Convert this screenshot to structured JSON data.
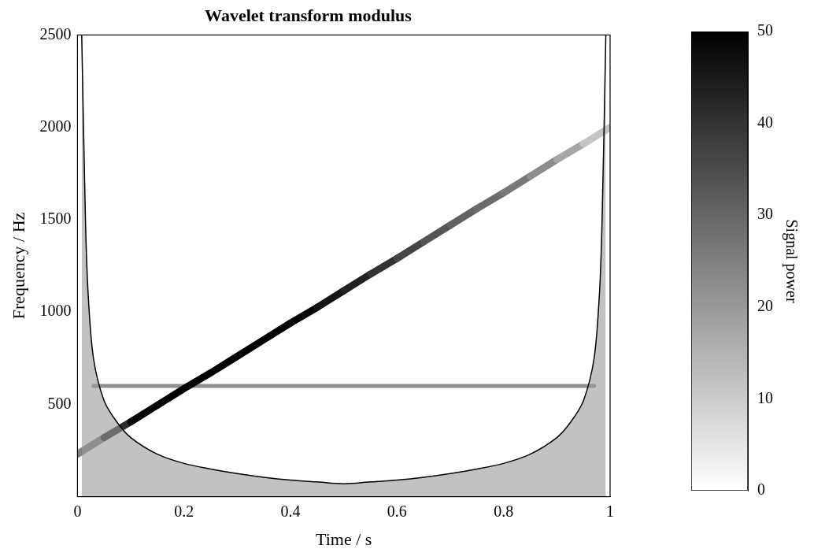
{
  "chart_data": {
    "type": "heatmap",
    "title": "Wavelet transform modulus",
    "x_label": "Time / s",
    "y_label": "Frequency / Hz",
    "xlim": [
      0,
      1
    ],
    "xticks": [
      0,
      0.2,
      0.4,
      0.6,
      0.8,
      1
    ],
    "ylim": [
      0,
      2500
    ],
    "yticks": [
      500,
      1000,
      1500,
      2000,
      2500
    ],
    "grid": false,
    "ridges": [
      {
        "x": [
          0,
          0.05,
          0.1,
          0.15,
          0.2,
          0.25,
          0.3,
          0.35,
          0.4,
          0.45,
          0.5,
          0.55,
          0.6,
          0.65,
          0.7,
          0.75,
          0.8,
          0.85,
          0.9,
          0.95,
          1
        ],
        "y": [
          230,
          320,
          405,
          495,
          585,
          670,
          760,
          850,
          940,
          1025,
          1115,
          1205,
          1290,
          1380,
          1470,
          1560,
          1645,
          1735,
          1825,
          1910,
          2000
        ],
        "power": [
          15,
          35,
          48,
          50,
          50,
          50,
          50,
          50,
          50,
          48,
          45,
          42,
          38,
          35,
          32,
          30,
          28,
          25,
          20,
          15,
          8
        ]
      },
      {
        "x": [
          0.03,
          0.2,
          0.4,
          0.6,
          0.8,
          0.97
        ],
        "y": [
          600,
          600,
          600,
          600,
          600,
          600
        ],
        "power": [
          22,
          22,
          22,
          22,
          22,
          22
        ]
      }
    ],
    "cone_of_influence": {
      "x": [
        0.008,
        0.015,
        0.02,
        0.03,
        0.05,
        0.075,
        0.1,
        0.15,
        0.2,
        0.25,
        0.3,
        0.35,
        0.4,
        0.45,
        0.5,
        0.55,
        0.6,
        0.65,
        0.7,
        0.75,
        0.8,
        0.85,
        0.9,
        0.925,
        0.95,
        0.97,
        0.98,
        0.985,
        0.992
      ],
      "y": [
        2500,
        1500,
        1100,
        750,
        520,
        400,
        320,
        230,
        180,
        150,
        125,
        105,
        90,
        80,
        70,
        80,
        90,
        105,
        125,
        150,
        180,
        230,
        320,
        400,
        520,
        750,
        1100,
        1500,
        2500
      ],
      "color": "#9a9a9a"
    },
    "colorbar": {
      "label": "Signal power",
      "range": [
        0,
        50
      ],
      "ticks": [
        0,
        10,
        20,
        30,
        40,
        50
      ]
    }
  }
}
